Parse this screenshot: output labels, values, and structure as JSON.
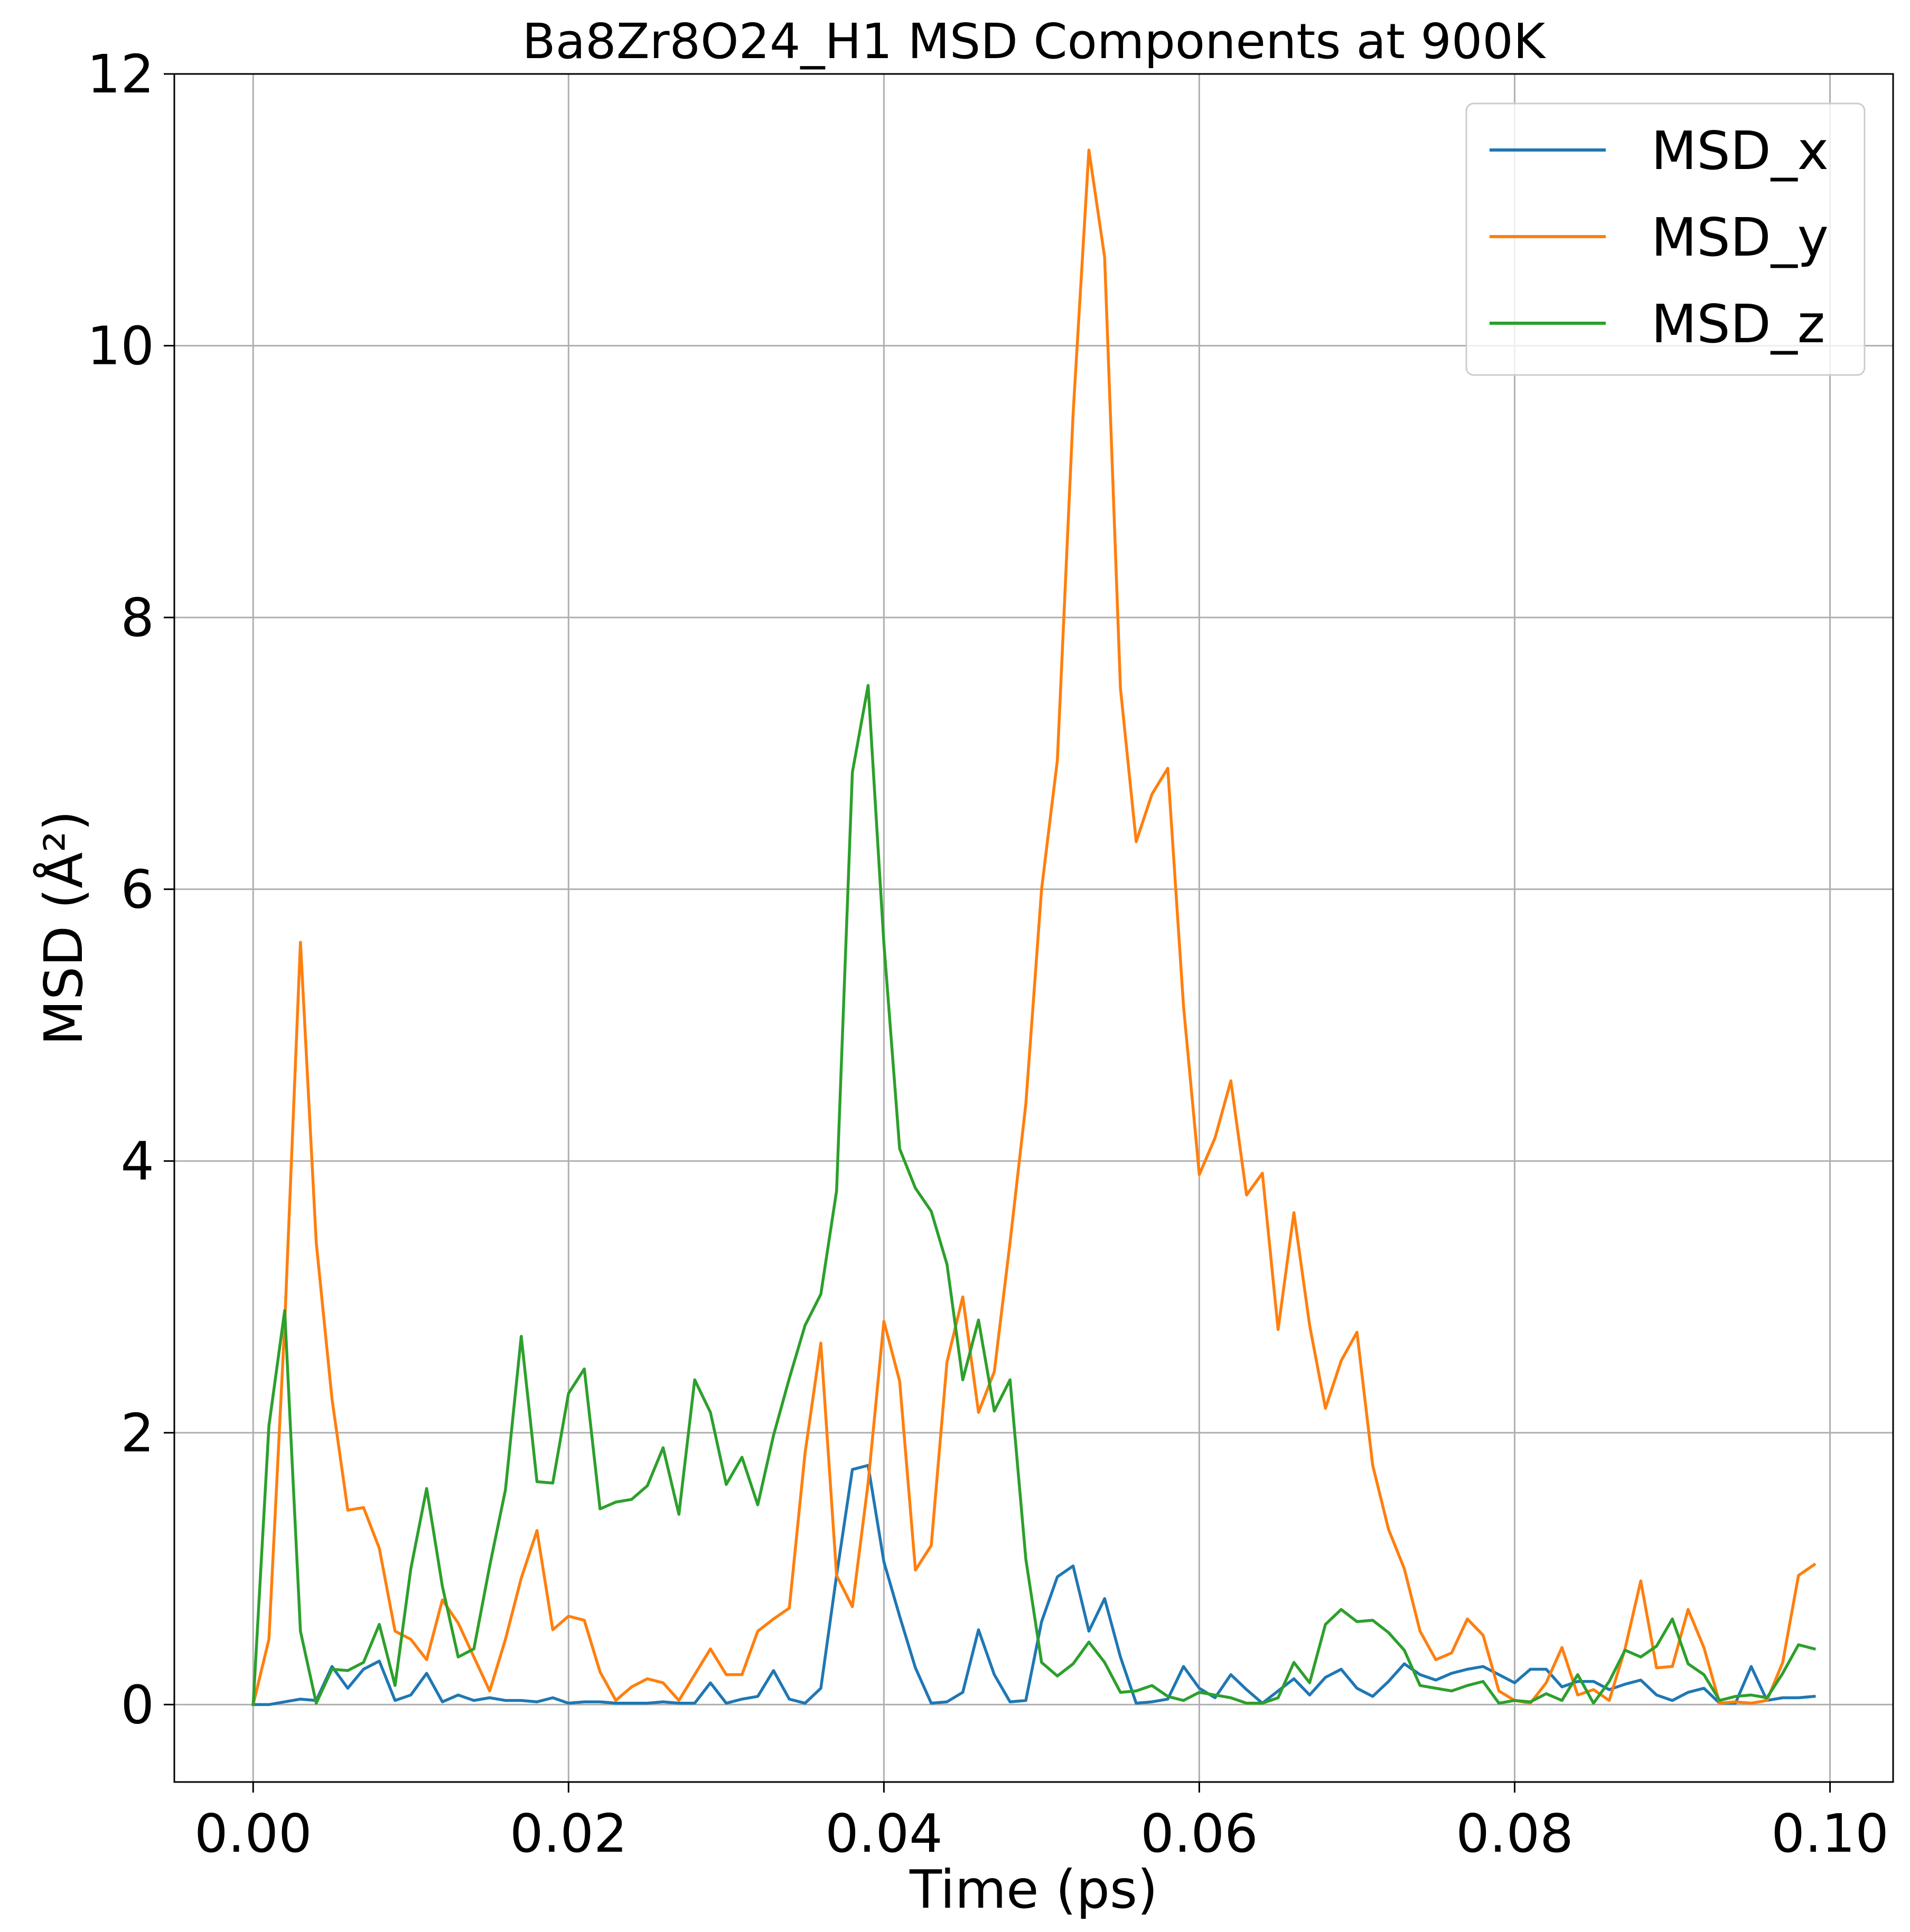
{
  "chart_data": {
    "type": "line",
    "title": "Ba8Zr8O24_H1 MSD Components at 900K",
    "xlabel": "Time (ps)",
    "ylabel": "MSD (Å²)",
    "xlim": [
      -0.005,
      0.104
    ],
    "ylim": [
      -0.57,
      12
    ],
    "xticks": [
      0.0,
      0.02,
      0.04,
      0.06,
      0.08,
      0.1
    ],
    "xtick_labels": [
      "0.00",
      "0.02",
      "0.04",
      "0.06",
      "0.08",
      "0.10"
    ],
    "yticks": [
      0,
      2,
      4,
      6,
      8,
      10,
      12
    ],
    "ytick_labels": [
      "0",
      "2",
      "4",
      "6",
      "8",
      "10",
      "12"
    ],
    "grid": true,
    "legend_position": "top-right",
    "x_start": 0.0,
    "x_step": 0.001,
    "series": [
      {
        "name": "MSD_x",
        "color": "#1f77b4",
        "values": [
          0.0,
          0.0,
          0.02,
          0.04,
          0.03,
          0.28,
          0.12,
          0.26,
          0.32,
          0.03,
          0.07,
          0.23,
          0.02,
          0.07,
          0.03,
          0.05,
          0.03,
          0.03,
          0.02,
          0.05,
          0.01,
          0.02,
          0.02,
          0.01,
          0.01,
          0.01,
          0.02,
          0.01,
          0.01,
          0.16,
          0.01,
          0.04,
          0.06,
          0.25,
          0.04,
          0.01,
          0.12,
          0.95,
          1.73,
          1.76,
          1.05,
          0.65,
          0.27,
          0.01,
          0.02,
          0.09,
          0.55,
          0.22,
          0.02,
          0.03,
          0.61,
          0.94,
          1.02,
          0.54,
          0.78,
          0.35,
          0.01,
          0.02,
          0.04,
          0.28,
          0.12,
          0.05,
          0.22,
          0.11,
          0.01,
          0.1,
          0.19,
          0.07,
          0.2,
          0.26,
          0.12,
          0.06,
          0.17,
          0.3,
          0.22,
          0.18,
          0.23,
          0.26,
          0.28,
          0.22,
          0.16,
          0.26,
          0.26,
          0.13,
          0.17,
          0.17,
          0.11,
          0.15,
          0.18,
          0.07,
          0.03,
          0.09,
          0.12,
          0.01,
          0.01,
          0.28,
          0.03,
          0.05,
          0.05,
          0.06
        ]
      },
      {
        "name": "MSD_y",
        "color": "#ff7f0e",
        "values": [
          0.0,
          0.48,
          2.8,
          5.61,
          3.4,
          2.25,
          1.43,
          1.45,
          1.15,
          0.54,
          0.48,
          0.33,
          0.77,
          0.6,
          0.35,
          0.1,
          0.48,
          0.93,
          1.28,
          0.55,
          0.65,
          0.62,
          0.24,
          0.03,
          0.13,
          0.19,
          0.16,
          0.03,
          0.22,
          0.41,
          0.22,
          0.22,
          0.54,
          0.63,
          0.71,
          1.85,
          2.66,
          0.95,
          0.72,
          1.63,
          2.82,
          2.38,
          0.99,
          1.17,
          2.52,
          3.0,
          2.15,
          2.45,
          3.4,
          4.42,
          6.0,
          6.95,
          9.5,
          11.44,
          10.65,
          7.48,
          6.35,
          6.7,
          6.89,
          5.14,
          3.9,
          4.17,
          4.59,
          3.75,
          3.91,
          2.76,
          3.62,
          2.79,
          2.18,
          2.53,
          2.74,
          1.76,
          1.29,
          1.0,
          0.54,
          0.33,
          0.38,
          0.63,
          0.51,
          0.1,
          0.03,
          0.01,
          0.16,
          0.42,
          0.07,
          0.11,
          0.03,
          0.41,
          0.91,
          0.27,
          0.28,
          0.7,
          0.42,
          0.01,
          0.02,
          0.01,
          0.03,
          0.31,
          0.95,
          1.03
        ]
      },
      {
        "name": "MSD_z",
        "color": "#2ca02c",
        "values": [
          0.0,
          2.05,
          2.9,
          0.54,
          0.01,
          0.26,
          0.25,
          0.31,
          0.59,
          0.14,
          1.0,
          1.59,
          0.87,
          0.35,
          0.41,
          1.02,
          1.58,
          2.71,
          1.64,
          1.63,
          2.29,
          2.47,
          1.44,
          1.49,
          1.51,
          1.61,
          1.89,
          1.4,
          2.39,
          2.15,
          1.62,
          1.82,
          1.47,
          1.98,
          2.4,
          2.79,
          3.02,
          3.78,
          6.86,
          7.5,
          5.6,
          4.09,
          3.8,
          3.63,
          3.24,
          2.39,
          2.83,
          2.16,
          2.39,
          1.07,
          0.31,
          0.21,
          0.3,
          0.46,
          0.31,
          0.09,
          0.1,
          0.14,
          0.06,
          0.03,
          0.09,
          0.07,
          0.05,
          0.01,
          0.01,
          0.05,
          0.31,
          0.16,
          0.59,
          0.7,
          0.61,
          0.62,
          0.53,
          0.4,
          0.14,
          0.12,
          0.1,
          0.14,
          0.17,
          0.01,
          0.03,
          0.02,
          0.08,
          0.03,
          0.22,
          0.01,
          0.17,
          0.4,
          0.35,
          0.43,
          0.63,
          0.3,
          0.22,
          0.03,
          0.06,
          0.07,
          0.05,
          0.23,
          0.44,
          0.41
        ]
      }
    ]
  }
}
